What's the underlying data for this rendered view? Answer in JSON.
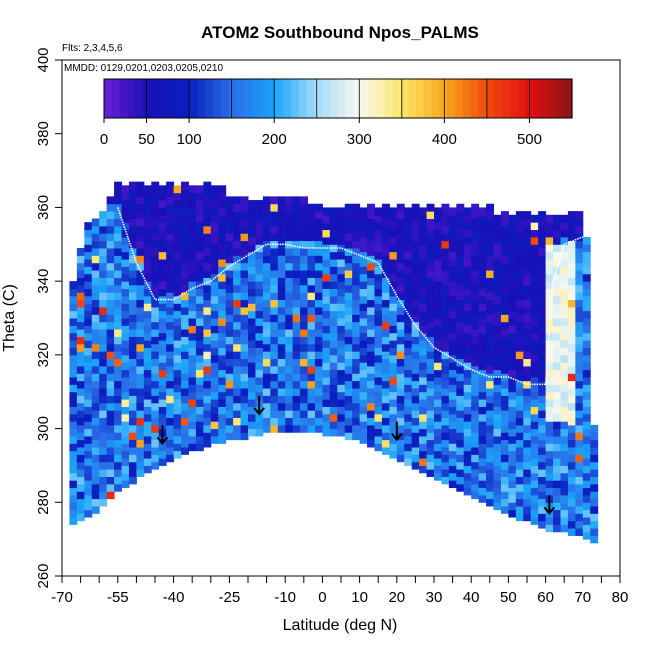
{
  "chart_data": {
    "type": "heatmap",
    "title": "ATOM2 Southbound Npos_PALMS",
    "flights_note": "Flts: 2,3,4,5,6",
    "dates_note": "MMDD: 0129,0201,0203,0205,0210",
    "xlabel": "Latitude (deg N)",
    "ylabel": "Theta (C)",
    "xlim": [
      -70,
      80
    ],
    "ylim": [
      260,
      400
    ],
    "x_ticks": [
      -70,
      -55,
      -40,
      -25,
      -10,
      0,
      10,
      20,
      30,
      40,
      50,
      60,
      70,
      80
    ],
    "x_ticks_minor": [
      -65,
      -60,
      -50,
      -45,
      -35,
      -30,
      -20,
      -15,
      -5,
      5,
      15,
      25,
      35,
      45,
      55,
      65,
      75
    ],
    "y_ticks": [
      260,
      280,
      300,
      320,
      340,
      360,
      380,
      400
    ],
    "colorbar": {
      "range": [
        0,
        550
      ],
      "ticks": [
        0,
        50,
        100,
        200,
        300,
        400,
        500
      ],
      "colors": [
        "#6a1fd4",
        "#1a10b8",
        "#0a1fbf",
        "#2a6ee8",
        "#1aa4f8",
        "#a6dcfa",
        "#f8f8f0",
        "#fbe66a",
        "#f8a81a",
        "#f04a10",
        "#e01010",
        "#8a1418"
      ]
    },
    "domain_outline": {
      "top": [
        [
          -68,
          336
        ],
        [
          -63,
          355
        ],
        [
          -58,
          360
        ],
        [
          -55,
          367
        ],
        [
          -53,
          366
        ],
        [
          -50,
          366
        ],
        [
          -27,
          366
        ],
        [
          -27,
          362
        ],
        [
          -5,
          362
        ],
        [
          -5,
          360
        ],
        [
          45,
          360
        ],
        [
          45,
          358
        ],
        [
          70,
          358
        ],
        [
          72,
          345
        ],
        [
          72,
          320
        ],
        [
          73,
          300
        ],
        [
          73,
          270
        ]
      ],
      "bottom": [
        [
          -68,
          274
        ],
        [
          -60,
          278
        ],
        [
          -55,
          283
        ],
        [
          -48,
          288
        ],
        [
          -40,
          292
        ],
        [
          -30,
          296
        ],
        [
          -20,
          298
        ],
        [
          -10,
          300
        ],
        [
          0,
          299
        ],
        [
          10,
          297
        ],
        [
          20,
          292
        ],
        [
          30,
          287
        ],
        [
          40,
          282
        ],
        [
          50,
          277
        ],
        [
          60,
          273
        ],
        [
          70,
          271
        ],
        [
          73,
          269
        ]
      ]
    },
    "tropopause": [
      [
        -55,
        360
      ],
      [
        -50,
        345
      ],
      [
        -45,
        335
      ],
      [
        -40,
        335
      ],
      [
        -35,
        338
      ],
      [
        -30,
        340
      ],
      [
        -25,
        344
      ],
      [
        -20,
        347
      ],
      [
        -15,
        350
      ],
      [
        -10,
        350
      ],
      [
        -5,
        349
      ],
      [
        0,
        349
      ],
      [
        5,
        349
      ],
      [
        10,
        347
      ],
      [
        15,
        345
      ],
      [
        20,
        336
      ],
      [
        25,
        328
      ],
      [
        30,
        322
      ],
      [
        35,
        319
      ],
      [
        40,
        316
      ],
      [
        45,
        314
      ],
      [
        50,
        314
      ],
      [
        55,
        312
      ],
      [
        60,
        312
      ],
      [
        62,
        340
      ],
      [
        65,
        350
      ],
      [
        70,
        352
      ]
    ],
    "arrows_lat": [
      -43,
      -17,
      20,
      61
    ],
    "arrows_theta": [
      296,
      304,
      297,
      277
    ]
  }
}
